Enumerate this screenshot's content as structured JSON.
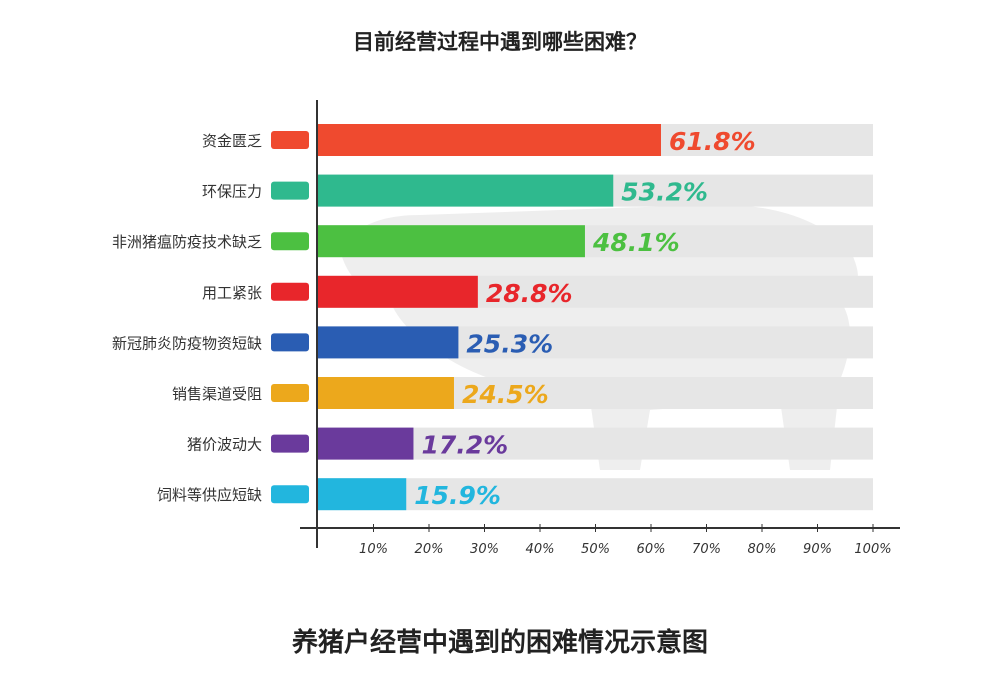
{
  "title": "目前经营过程中遇到哪些困难？",
  "caption": "养猪户经营中遇到的困难情况示意图",
  "chart_data": {
    "type": "bar",
    "orientation": "horizontal",
    "title": "目前经营过程中遇到哪些困难？",
    "categories": [
      "资金匮乏",
      "环保压力",
      "非洲猪瘟防疫技术缺乏",
      "用工紧张",
      "新冠肺炎防疫物资短缺",
      "销售渠道受阻",
      "猪价波动大",
      "饲料等供应短缺"
    ],
    "values": [
      61.8,
      53.2,
      48.1,
      28.8,
      25.3,
      24.5,
      17.2,
      15.9
    ],
    "value_labels": [
      "61.8%",
      "53.2%",
      "48.1%",
      "28.8%",
      "25.3%",
      "24.5%",
      "17.2%",
      "15.9%"
    ],
    "colors": [
      "#ef4a2f",
      "#2fb98e",
      "#4cc041",
      "#e8262b",
      "#2a5db3",
      "#eca81c",
      "#6a3a9c",
      "#22b6de"
    ],
    "xlim": [
      0,
      100
    ],
    "xticks": [
      10,
      20,
      30,
      40,
      50,
      60,
      70,
      80,
      90,
      100
    ],
    "xtick_labels": [
      "10%",
      "20%",
      "30%",
      "40%",
      "50%",
      "60%",
      "70%",
      "80%",
      "90%",
      "100%"
    ],
    "xlabel": "",
    "ylabel": "",
    "grid": false,
    "background_track_color": "#e6e6e6"
  }
}
